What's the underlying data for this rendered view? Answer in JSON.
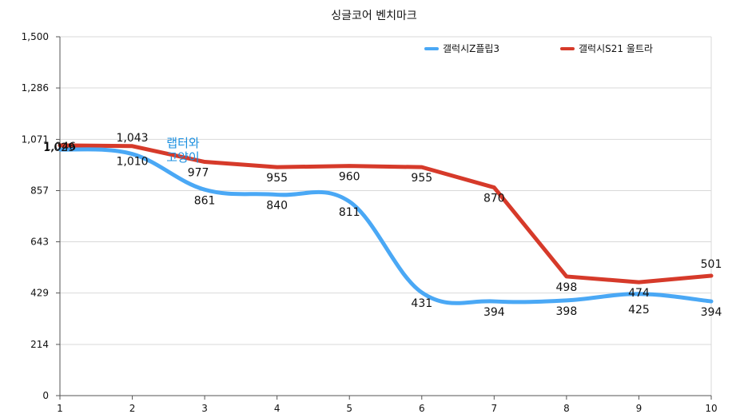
{
  "chart_data": {
    "type": "line",
    "title": "싱글코어 벤치마크",
    "xlabel": "",
    "ylabel": "",
    "x": [
      1,
      2,
      3,
      4,
      5,
      6,
      7,
      8,
      9,
      10
    ],
    "y_ticks": [
      "0",
      "214",
      "429",
      "643",
      "857",
      "1,071",
      "1,286",
      "1,500"
    ],
    "y_tick_values": [
      0,
      214,
      429,
      643,
      857,
      1071,
      1286,
      1500
    ],
    "ylim": [
      0,
      1500
    ],
    "xlim": [
      1,
      10
    ],
    "grid": true,
    "legend_position": "top-right",
    "series": [
      {
        "name": "갤럭시Z플립3",
        "color": "#4aa8f5",
        "smooth": true,
        "values": [
          1029,
          1010,
          861,
          840,
          811,
          431,
          394,
          398,
          425,
          394
        ],
        "labels": [
          "1,029",
          "1,010",
          "861",
          "840",
          "811",
          "431",
          "394",
          "398",
          "425",
          "394"
        ]
      },
      {
        "name": "갤럭시S21 울트라",
        "color": "#d63a2a",
        "smooth": false,
        "values": [
          1046,
          1043,
          977,
          955,
          960,
          955,
          870,
          498,
          474,
          501
        ],
        "labels": [
          "1,046",
          "1,043",
          "977",
          "955",
          "960",
          "955",
          "870",
          "498",
          "474",
          "501"
        ]
      }
    ],
    "watermark": {
      "lines": [
        "랩터와",
        "고양이"
      ],
      "color": "#1a8fe0"
    }
  }
}
